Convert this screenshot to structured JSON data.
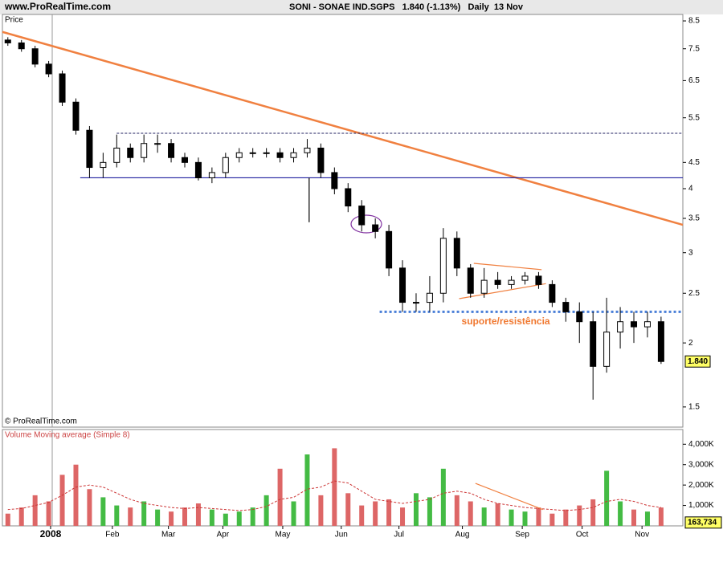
{
  "header": {
    "site": "www.ProRealTime.com",
    "title": "SONI - SONAE IND.SGPS   1.840 (-1.13%)   Daily  13 Nov"
  },
  "chart_data": [
    {
      "type": "candlestick",
      "title": "Price",
      "footer": "© ProRealTime.com",
      "log_scale": true,
      "xlim": [
        0,
        250
      ],
      "xticks": [
        {
          "value": 17.7,
          "label": "2008"
        },
        {
          "value": 40.4,
          "label": "Feb"
        },
        {
          "value": 61,
          "label": "Mar"
        },
        {
          "value": 81,
          "label": "Apr"
        },
        {
          "value": 103,
          "label": "May"
        },
        {
          "value": 124.5,
          "label": "Jun"
        },
        {
          "value": 145.7,
          "label": "Jul"
        },
        {
          "value": 169,
          "label": "Aug"
        },
        {
          "value": 191,
          "label": "Sep"
        },
        {
          "value": 213,
          "label": "Oct"
        },
        {
          "value": 235,
          "label": "Nov"
        }
      ],
      "ylim": [
        1.37,
        8.75
      ],
      "yticks": [
        1.5,
        2,
        2.5,
        3,
        3.5,
        4,
        4.5,
        5.5,
        6.5,
        7.5,
        8.5
      ],
      "up_color": "#ffffff",
      "down_color": "#000000",
      "x": [
        2,
        7,
        12,
        17,
        22,
        27,
        32,
        37,
        42,
        47,
        52,
        57,
        62,
        67,
        72,
        77,
        82,
        87,
        92,
        97,
        102,
        107,
        112,
        117,
        122,
        127,
        132,
        137,
        142,
        147,
        152,
        157,
        162,
        167,
        172,
        177,
        182,
        187,
        192,
        197,
        202,
        207,
        212,
        217,
        222,
        227,
        232,
        237,
        242
      ],
      "open": [
        7.8,
        7.7,
        7.5,
        7.0,
        6.7,
        5.9,
        5.2,
        4.4,
        4.5,
        4.8,
        4.6,
        4.9,
        4.9,
        4.6,
        4.5,
        4.2,
        4.3,
        4.6,
        4.7,
        4.7,
        4.7,
        4.6,
        4.7,
        4.8,
        4.3,
        4.0,
        3.7,
        3.4,
        3.3,
        2.8,
        2.4,
        2.4,
        2.5,
        3.2,
        2.8,
        2.5,
        2.65,
        2.6,
        2.65,
        2.7,
        2.6,
        2.4,
        2.3,
        2.2,
        1.8,
        2.1,
        2.2,
        2.15,
        2.2
      ],
      "high": [
        7.9,
        7.8,
        7.6,
        7.1,
        6.8,
        6.0,
        5.3,
        4.7,
        5.1,
        4.9,
        5.1,
        5.1,
        5.0,
        4.7,
        4.6,
        4.4,
        4.7,
        4.8,
        4.8,
        4.8,
        4.8,
        4.8,
        5.0,
        4.9,
        4.4,
        4.1,
        3.8,
        3.5,
        3.4,
        2.9,
        2.5,
        2.7,
        3.35,
        3.3,
        2.85,
        2.8,
        2.75,
        2.7,
        2.75,
        2.75,
        2.65,
        2.45,
        2.4,
        2.3,
        2.45,
        2.35,
        2.3,
        2.3,
        2.25
      ],
      "low": [
        7.6,
        7.4,
        6.9,
        6.6,
        5.8,
        5.1,
        4.2,
        4.2,
        4.4,
        4.5,
        4.5,
        4.7,
        4.5,
        4.4,
        4.15,
        4.1,
        4.2,
        4.5,
        4.6,
        4.6,
        4.5,
        4.5,
        4.6,
        4.2,
        3.9,
        3.6,
        3.3,
        3.2,
        2.7,
        2.3,
        2.3,
        2.3,
        2.4,
        2.7,
        2.45,
        2.45,
        2.55,
        2.55,
        2.6,
        2.55,
        2.35,
        2.2,
        2.0,
        1.55,
        1.75,
        1.95,
        2.0,
        2.05,
        1.82
      ],
      "close": [
        7.7,
        7.5,
        7.0,
        6.7,
        5.9,
        5.2,
        4.4,
        4.5,
        4.8,
        4.6,
        4.9,
        4.9,
        4.6,
        4.5,
        4.2,
        4.3,
        4.6,
        4.7,
        4.7,
        4.7,
        4.6,
        4.7,
        4.8,
        4.3,
        4.0,
        3.7,
        3.4,
        3.3,
        2.8,
        2.4,
        2.4,
        2.5,
        3.2,
        2.8,
        2.5,
        2.65,
        2.6,
        2.65,
        2.7,
        2.6,
        2.4,
        2.3,
        2.2,
        1.8,
        2.1,
        2.2,
        2.15,
        2.2,
        1.84
      ],
      "last": {
        "value": 1.84,
        "label": "1.840"
      },
      "lines": [
        {
          "x": [
            0,
            250
          ],
          "y": [
            8.09,
            3.4
          ],
          "color": "#f08040",
          "width": 2.5,
          "dash": ""
        },
        {
          "x": [
            28.6,
            250
          ],
          "y": [
            4.2,
            4.2
          ],
          "color": "#2020a0",
          "width": 1.2,
          "dash": ""
        },
        {
          "x": [
            42,
            250
          ],
          "y": [
            5.13,
            5.13
          ],
          "color": "#202060",
          "width": 1,
          "dash": "3,2"
        },
        {
          "x": [
            138.6,
            250
          ],
          "y": [
            2.3,
            2.3
          ],
          "color": "#4a7fd8",
          "width": 3,
          "dash": "3,3"
        },
        {
          "x": [
            173.2,
            198.1
          ],
          "y": [
            2.86,
            2.78
          ],
          "color": "#f08040",
          "width": 1.2,
          "dash": ""
        },
        {
          "x": [
            167.8,
            199.7
          ],
          "y": [
            2.44,
            2.61
          ],
          "color": "#f08040",
          "width": 1.2,
          "dash": ""
        },
        {
          "x": [
            112.7,
            112.7
          ],
          "y": [
            4.2,
            3.44
          ],
          "color": "#000000",
          "width": 1.2,
          "dash": ""
        }
      ],
      "annotation": {
        "text": "suporte/resistência",
        "x": 168.7,
        "y": 2.2,
        "color": "#f07830"
      }
    },
    {
      "type": "volume",
      "title": "Volume Moving average (Simple 8)",
      "ylim": [
        0,
        4720
      ],
      "yticks": [
        {
          "value": 1000,
          "label": "1,000K"
        },
        {
          "value": 2000,
          "label": "2,000K"
        },
        {
          "value": 3000,
          "label": "3,000K"
        },
        {
          "value": 4000,
          "label": "4,000K"
        }
      ],
      "up_color": "#44bb44",
      "down_color": "#dd6666",
      "values": [
        600,
        900,
        1500,
        1200,
        2500,
        3000,
        1800,
        1400,
        1000,
        900,
        1200,
        800,
        700,
        900,
        1100,
        800,
        600,
        700,
        900,
        1500,
        2800,
        1200,
        3500,
        1500,
        3800,
        1600,
        1000,
        1200,
        1300,
        900,
        1600,
        1400,
        2800,
        1500,
        1200,
        900,
        1100,
        800,
        700,
        900,
        600,
        800,
        1000,
        1300,
        2700,
        1200,
        800,
        700,
        900
      ],
      "ma": {
        "color": "#cc3333",
        "values": [
          800,
          850,
          1000,
          1150,
          1500,
          1900,
          2000,
          1900,
          1600,
          1300,
          1100,
          1000,
          900,
          850,
          900,
          850,
          800,
          750,
          800,
          950,
          1300,
          1400,
          1800,
          1900,
          2200,
          2100,
          1700,
          1300,
          1200,
          1100,
          1200,
          1300,
          1600,
          1700,
          1600,
          1300,
          1100,
          1000,
          900,
          850,
          800,
          750,
          800,
          900,
          1200,
          1300,
          1200,
          1000,
          900
        ]
      },
      "last": {
        "value": 163.734,
        "label": "163,734"
      },
      "lines": [
        {
          "x": [
            173.8,
            198.6
          ],
          "y": [
            2080,
            800
          ],
          "color": "#f08040",
          "width": 1.2,
          "dash": ""
        }
      ]
    }
  ]
}
